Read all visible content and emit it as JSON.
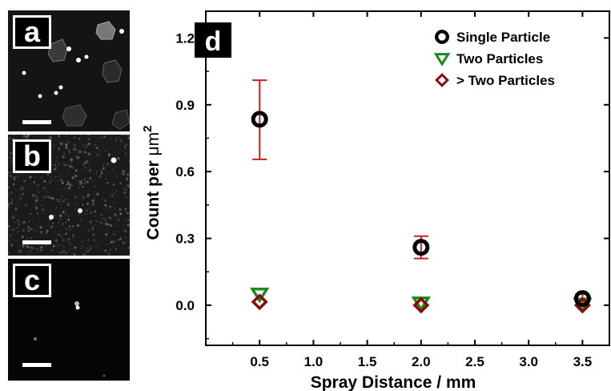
{
  "panels": [
    {
      "letter": "a"
    },
    {
      "letter": "b"
    },
    {
      "letter": "c"
    }
  ],
  "chart_data": {
    "type": "scatter",
    "panel_label": "d",
    "xlabel": "Spray Distance / mm",
    "ylabel_prefix": "Count per ",
    "ylabel_unit": "μm",
    "ylabel_exp": "2",
    "xlim": [
      0.0,
      3.75
    ],
    "ylim": [
      -0.18,
      1.32
    ],
    "xticks": [
      0.5,
      1.0,
      1.5,
      2.0,
      2.5,
      3.0,
      3.5
    ],
    "xtick_labels": [
      "0.5",
      "1.0",
      "1.5",
      "2.0",
      "2.5",
      "3.0",
      "3.5"
    ],
    "yticks": [
      0.0,
      0.3,
      0.6,
      0.9,
      1.2
    ],
    "ytick_labels": [
      "0.0",
      "0.3",
      "0.6",
      "0.9",
      "1.2"
    ],
    "legend_position": "top-right",
    "series": [
      {
        "name": "Single Particle",
        "marker": "circle",
        "color": "#000000",
        "x": [
          0.5,
          2.0,
          3.5
        ],
        "y": [
          0.835,
          0.26,
          0.03
        ],
        "err_low": [
          0.655,
          0.21,
          0.0
        ],
        "err_high": [
          1.01,
          0.31,
          0.05
        ]
      },
      {
        "name": "Two Particles",
        "marker": "triangle-down",
        "color": "#1a8a1a",
        "x": [
          0.5,
          2.0,
          3.5
        ],
        "y": [
          0.05,
          0.01,
          0.005
        ]
      },
      {
        "name": "> Two Particles",
        "marker": "diamond",
        "color": "#8b0a0a",
        "x": [
          0.5,
          2.0,
          3.5
        ],
        "y": [
          0.015,
          0.0,
          0.0
        ]
      }
    ],
    "errorbar_color": "#cc2222"
  }
}
